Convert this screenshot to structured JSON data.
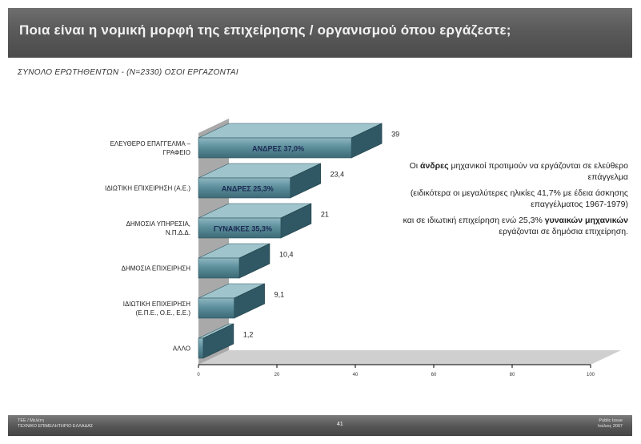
{
  "header": {
    "title": "Ποια είναι η νομική μορφή της επιχείρησης / οργανισμού όπου εργάζεστε;",
    "subtitle": "ΣΥΝΟΛΟ ΕΡΩΤΗΘΕΝΤΩΝ - (N=2330) ΟΣΟΙ ΕΡΓΑΖΟΝΤΑΙ"
  },
  "chart_data": {
    "type": "bar",
    "orientation": "horizontal",
    "categories": [
      "ΕΛΕΥΘΕΡΟ ΕΠΑΓΓΕΛΜΑ – ΓΡΑΦΕΙΟ",
      "ΙΔΙΩΤΙΚΗ ΕΠΙΧΕΙΡΗΣΗ (Α.Ε.)",
      "ΔΗΜΟΣΙΑ ΥΠΗΡΕΣΙΑ, Ν.Π.Δ.Δ.",
      "ΔΗΜΟΣΙΑ ΕΠΙΧΕΙΡΗΣΗ",
      "ΙΔΙΩΤΙΚΗ ΕΠΙΧΕΙΡΗΣΗ (Ε.Π.Ε., Ο.Ε., Ε.Ε.)",
      "ΑΛΛΟ"
    ],
    "values": [
      39,
      23.4,
      21,
      10.4,
      9.1,
      1.2
    ],
    "value_labels": [
      "39",
      "23,4",
      "21",
      "10,4",
      "9,1",
      "1,2"
    ],
    "bar_annotations": [
      "ΑΝΔΡΕΣ 37,0%",
      "ΑΝΔΡΕΣ 25,3%",
      "ΓΥΝΑΙΚΕΣ 35,3%",
      "",
      "",
      ""
    ],
    "x_ticks": [
      "0",
      "20",
      "40",
      "60",
      "80",
      "100"
    ],
    "xlim": [
      0,
      100
    ],
    "bar_color": "#5d8f9c",
    "grid": false,
    "legend": "none"
  },
  "note": {
    "p1_before": "Οι ",
    "p1_bold": "άνδρες",
    "p1_after": " μηχανικοί προτιμούν να εργάζονται σε ελεύθερο επάγγελμα",
    "p2": "(ειδικότερα οι μεγαλύτερες ηλικίες 41,7% με έδεια άσκησης επαγγέλματος 1967-1979)",
    "p3_before": "και σε ιδιωτική επιχείρηση ενώ 25,3% ",
    "p3_bold": "γυναικών μηχανικών",
    "p3_after": " εργάζονται σε δημόσια επιχείρηση."
  },
  "footer": {
    "left_line1": "ΤΕΕ / Μελέτη",
    "left_line2": "ΤΕΧΝΙΚΟ ΕΠΙΜΕΛΗΤΗΡΙΟ ΕΛΛΑΔΑΣ",
    "page": "41",
    "right_line1": "Public Issue",
    "right_line2": "Ιούλιος 2007"
  }
}
